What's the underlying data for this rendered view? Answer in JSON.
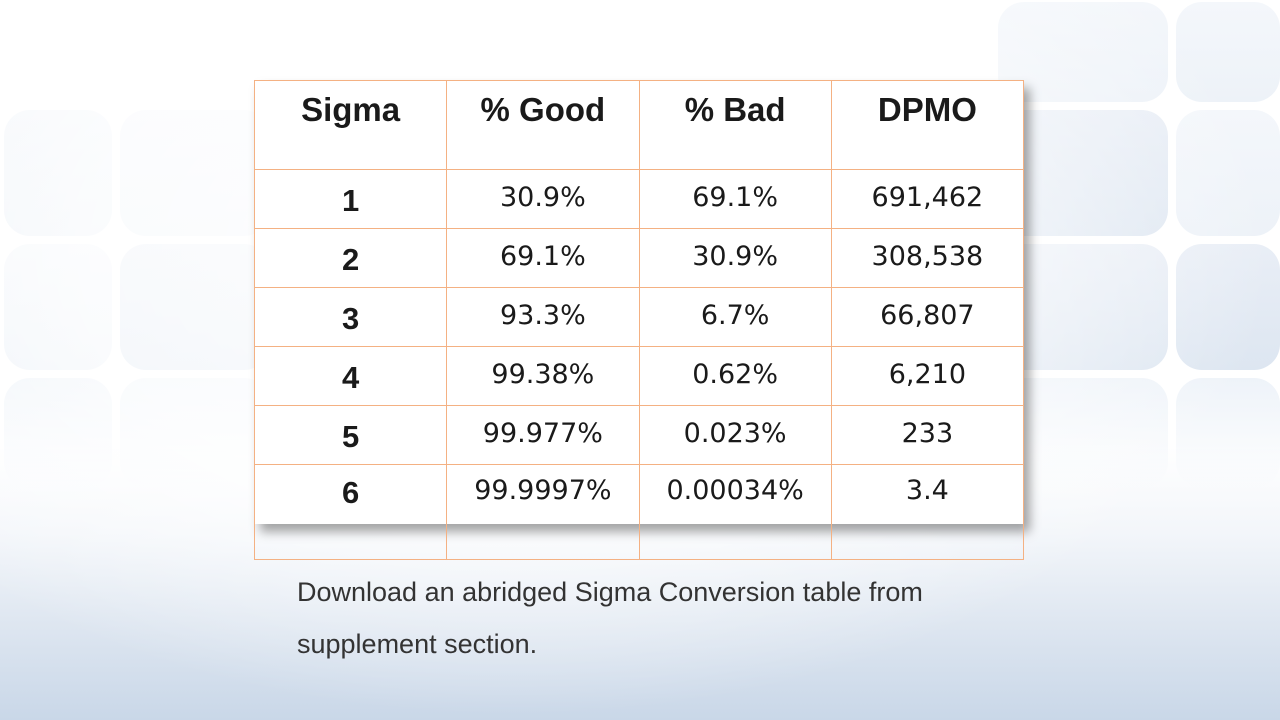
{
  "table": {
    "headers": [
      "Sigma",
      "% Good",
      "% Bad",
      "DPMO"
    ],
    "rows": [
      [
        "1",
        "30.9%",
        "69.1%",
        "691,462"
      ],
      [
        "2",
        "69.1%",
        "30.9%",
        "308,538"
      ],
      [
        "3",
        "93.3%",
        "6.7%",
        "66,807"
      ],
      [
        "4",
        "99.38%",
        "0.62%",
        "6,210"
      ],
      [
        "5",
        "99.977%",
        "0.023%",
        "233"
      ],
      [
        "6",
        "99.9997%",
        "0.00034%",
        "3.4"
      ]
    ],
    "border_color": "#f4b183"
  },
  "caption": "Download an abridged Sigma Conversion table from supplement section.",
  "colors": {
    "text": "#1a1a1a",
    "caption_text": "#333333",
    "background_tile": "#dde6f1"
  }
}
